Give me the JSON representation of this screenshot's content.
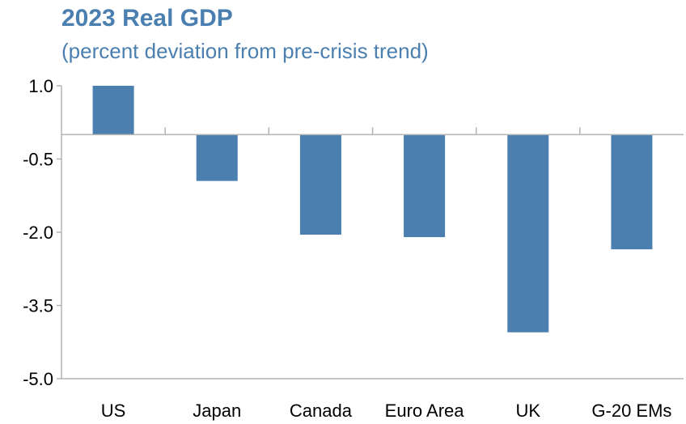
{
  "chart_data": {
    "type": "bar",
    "title": "2023 Real GDP",
    "subtitle": "(percent deviation from pre-crisis trend)",
    "xlabel": "",
    "ylabel": "",
    "categories": [
      "US",
      "Japan",
      "Canada",
      "Euro Area",
      "UK",
      "G-20 EMs"
    ],
    "values": [
      1.0,
      -0.95,
      -2.05,
      -2.1,
      -4.05,
      -2.35
    ],
    "ylim": [
      -5.0,
      1.0
    ],
    "yticks": [
      "1.0",
      "-0.5",
      "-2.0",
      "-3.5",
      "-5.0"
    ],
    "bar_color": "#4a7fb0",
    "grid": false,
    "legend": "none"
  }
}
